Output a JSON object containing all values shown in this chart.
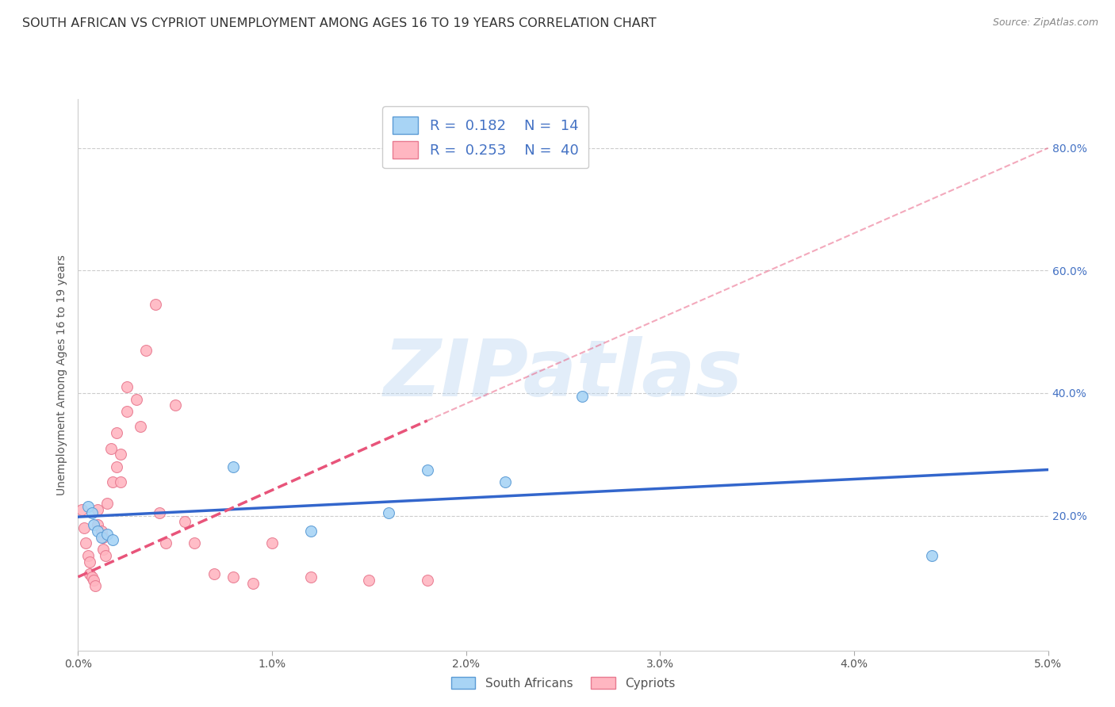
{
  "title": "SOUTH AFRICAN VS CYPRIOT UNEMPLOYMENT AMONG AGES 16 TO 19 YEARS CORRELATION CHART",
  "source": "Source: ZipAtlas.com",
  "ylabel": "Unemployment Among Ages 16 to 19 years",
  "xlim": [
    0.0,
    0.05
  ],
  "ylim": [
    -0.02,
    0.88
  ],
  "xticks": [
    0.0,
    0.01,
    0.02,
    0.03,
    0.04,
    0.05
  ],
  "xticklabels": [
    "0.0%",
    "1.0%",
    "2.0%",
    "3.0%",
    "4.0%",
    "5.0%"
  ],
  "yticks": [
    0.2,
    0.4,
    0.6,
    0.8
  ],
  "yticklabels": [
    "20.0%",
    "40.0%",
    "60.0%",
    "80.0%"
  ],
  "sa_fill": "#A8D4F5",
  "sa_edge": "#5B9BD5",
  "cy_fill": "#FFB6C1",
  "cy_edge": "#E87A90",
  "trend_blue_color": "#3366CC",
  "trend_pink_color": "#E8547A",
  "grid_color": "#cccccc",
  "bg_color": "#ffffff",
  "marker_size": 100,
  "legend_R_sa": "0.182",
  "legend_N_sa": "14",
  "legend_R_cy": "0.253",
  "legend_N_cy": "40",
  "watermark": "ZIPatlas",
  "south_africans_x": [
    0.0005,
    0.0007,
    0.0008,
    0.001,
    0.0012,
    0.0015,
    0.0018,
    0.008,
    0.012,
    0.016,
    0.018,
    0.022,
    0.026,
    0.044
  ],
  "south_africans_y": [
    0.215,
    0.205,
    0.185,
    0.175,
    0.165,
    0.17,
    0.16,
    0.28,
    0.175,
    0.205,
    0.275,
    0.255,
    0.395,
    0.135
  ],
  "cypriots_x": [
    0.0002,
    0.0003,
    0.0004,
    0.0005,
    0.0006,
    0.0006,
    0.0007,
    0.0008,
    0.0009,
    0.001,
    0.001,
    0.0012,
    0.0013,
    0.0013,
    0.0014,
    0.0015,
    0.0017,
    0.0018,
    0.002,
    0.002,
    0.0022,
    0.0022,
    0.0025,
    0.0025,
    0.003,
    0.0032,
    0.0035,
    0.004,
    0.0042,
    0.0045,
    0.005,
    0.0055,
    0.006,
    0.007,
    0.008,
    0.009,
    0.01,
    0.012,
    0.015,
    0.018
  ],
  "cypriots_y": [
    0.21,
    0.18,
    0.155,
    0.135,
    0.125,
    0.105,
    0.1,
    0.095,
    0.085,
    0.21,
    0.185,
    0.175,
    0.165,
    0.145,
    0.135,
    0.22,
    0.31,
    0.255,
    0.335,
    0.28,
    0.3,
    0.255,
    0.41,
    0.37,
    0.39,
    0.345,
    0.47,
    0.545,
    0.205,
    0.155,
    0.38,
    0.19,
    0.155,
    0.105,
    0.1,
    0.09,
    0.155,
    0.1,
    0.095,
    0.095
  ],
  "trend_sa_x0": 0.0,
  "trend_sa_y0": 0.198,
  "trend_sa_x1": 0.05,
  "trend_sa_y1": 0.275,
  "trend_cy_x0": 0.0,
  "trend_cy_y0": 0.1,
  "trend_cy_x1": 0.018,
  "trend_cy_y1": 0.355
}
